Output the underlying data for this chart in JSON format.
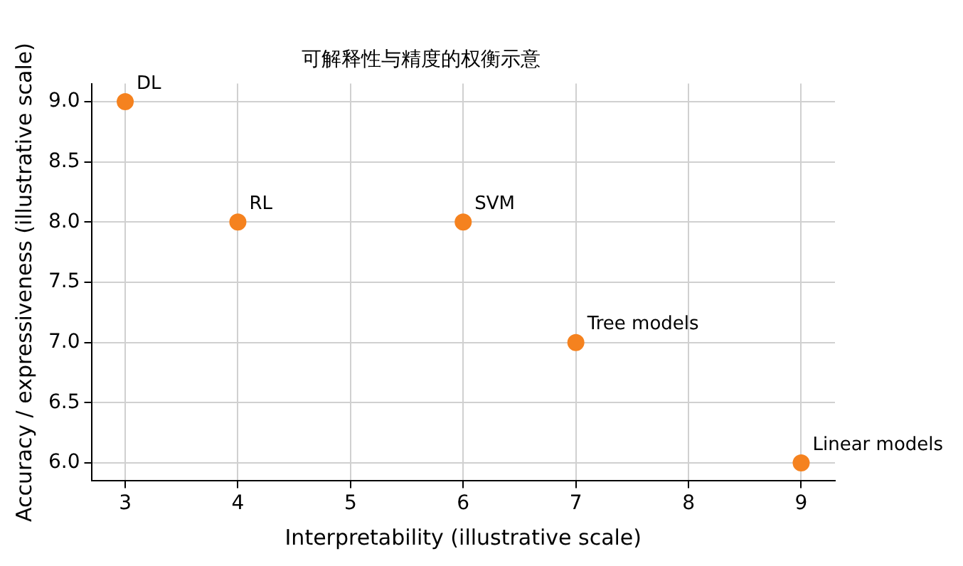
{
  "chart_data": {
    "type": "scatter",
    "title": "可解释性与精度的权衡示意",
    "xlabel": "Interpretability (illustrative scale)",
    "ylabel": "Accuracy / expressiveness (illustrative scale)",
    "x": [
      3,
      4,
      6,
      7,
      9
    ],
    "series": [
      {
        "color": "#f5821f",
        "values": [
          9,
          8,
          8,
          7,
          6
        ]
      }
    ],
    "xlim": [
      2.7,
      9.3
    ],
    "xticks": [
      3,
      4,
      5,
      6,
      7,
      8,
      9
    ],
    "ylim": [
      5.85,
      9.15
    ],
    "yticks": [
      {
        "value": 6,
        "label": "6.0"
      },
      {
        "value": 6.5,
        "label": "6.5"
      },
      {
        "value": 7,
        "label": "7.0"
      },
      {
        "value": 7.5,
        "label": "7.5"
      },
      {
        "value": 8,
        "label": "8.0"
      },
      {
        "value": 8.5,
        "label": "8.5"
      },
      {
        "value": 9,
        "label": "9.0"
      }
    ],
    "grid": true,
    "marker": "circle",
    "legend": false,
    "annotations": [
      {
        "text": "DL",
        "x": 3,
        "y": 9
      },
      {
        "text": "RL",
        "x": 4,
        "y": 8
      },
      {
        "text": "SVM",
        "x": 6,
        "y": 8
      },
      {
        "text": "Tree models",
        "x": 7,
        "y": 7
      },
      {
        "text": "Linear models",
        "x": 9,
        "y": 6
      }
    ]
  }
}
